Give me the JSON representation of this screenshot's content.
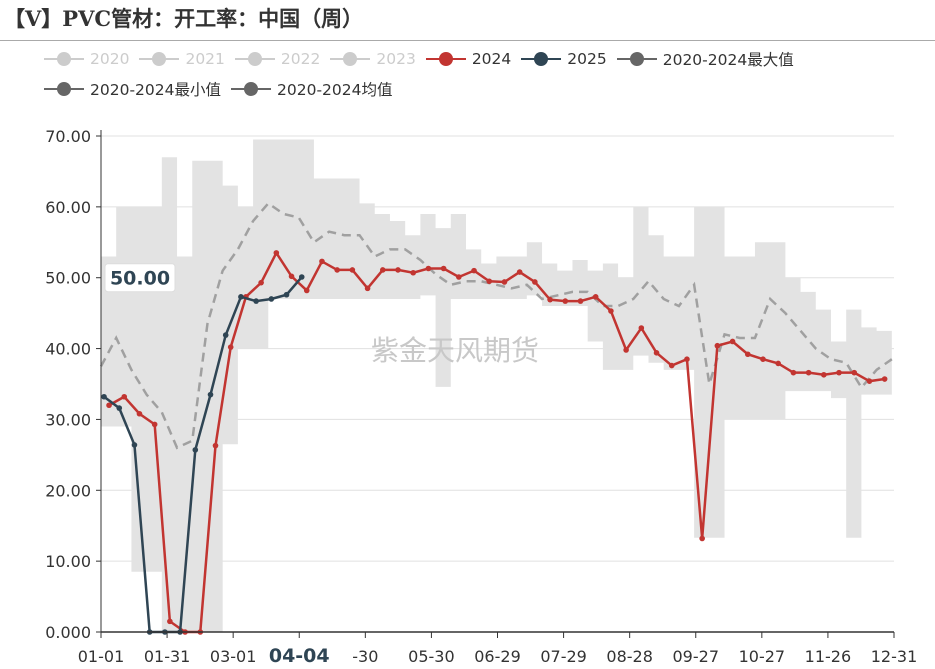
{
  "title": "【V】PVC管材：开工率：中国（周）",
  "legend": [
    {
      "label": "2020",
      "color": "#cccccc",
      "active": false
    },
    {
      "label": "2021",
      "color": "#cccccc",
      "active": false
    },
    {
      "label": "2022",
      "color": "#cccccc",
      "active": false
    },
    {
      "label": "2023",
      "color": "#cccccc",
      "active": false
    },
    {
      "label": "2024",
      "color": "#c23531",
      "active": true
    },
    {
      "label": "2025",
      "color": "#2f4554",
      "active": true
    },
    {
      "label": "2020-2024最大值",
      "color": "#666666",
      "active": true
    },
    {
      "label": "2020-2024最小值",
      "color": "#666666",
      "active": true
    },
    {
      "label": "2020-2024均值",
      "color": "#666666",
      "active": true
    }
  ],
  "watermark": "紫金天风期货",
  "chart_data": {
    "type": "line",
    "title": "【V】PVC管材：开工率：中国（周）",
    "ylim": [
      0,
      70
    ],
    "y_ticks": [
      "0.000",
      "10.00",
      "20.00",
      "30.00",
      "40.00",
      "50.00",
      "60.00",
      "70.00"
    ],
    "x_ticks": [
      "01-01",
      "01-31",
      "03-01",
      "04-04",
      "-30",
      "05-30",
      "06-29",
      "07-29",
      "08-28",
      "09-27",
      "10-27",
      "11-26",
      "12-31"
    ],
    "axis_pointer": {
      "x_label": "04-04",
      "y_label": "50.00"
    },
    "band_step_days": 7,
    "series": [
      {
        "name": "2024",
        "color": "#c23531",
        "start_day": 3.7,
        "step_days": 7,
        "values": [
          32,
          33.2,
          30.8,
          29.3,
          1.5,
          0,
          0,
          26.3,
          40.2,
          47.3,
          49.3,
          53.5,
          50.2,
          48.2,
          52.3,
          51.1,
          51.1,
          48.5,
          51.1,
          51.1,
          50.7,
          51.3,
          51.3,
          50.1,
          51.0,
          49.5,
          49.4,
          50.8,
          49.4,
          46.9,
          46.7,
          46.7,
          47.3,
          45.3,
          39.8,
          42.9,
          39.4,
          37.6,
          38.5,
          13.2,
          40.4,
          41.0,
          39.2,
          38.5,
          37.9,
          36.6,
          36.6,
          36.3,
          36.6,
          36.6,
          35.4,
          35.7
        ]
      },
      {
        "name": "2025",
        "color": "#2f4554",
        "start_day": 1.4,
        "step_days": 7,
        "values": [
          33.2,
          31.6,
          26.4,
          0,
          0,
          0,
          25.7,
          33.5,
          41.9,
          47.3,
          46.7,
          47.0,
          47.6,
          50.1
        ]
      },
      {
        "name": "2020-2024最大值",
        "values": [
          53,
          60,
          60,
          60,
          67,
          53,
          66.5,
          66.5,
          63,
          60,
          69.5,
          69.5,
          69.5,
          69.5,
          64,
          64,
          64,
          60.5,
          59,
          58,
          56,
          59,
          57,
          59,
          54,
          52,
          53,
          53,
          55,
          52,
          51,
          52.5,
          51,
          52,
          50,
          60,
          56,
          53,
          53,
          60,
          60,
          53,
          53,
          55,
          55,
          50,
          48,
          45.5,
          41,
          45.5,
          43,
          42.5,
          47
        ]
      },
      {
        "name": "2020-2024最小值",
        "values": [
          29,
          29,
          8.5,
          8.5,
          0,
          0,
          0,
          0,
          26.5,
          40,
          40,
          47,
          47,
          47,
          47,
          47,
          47,
          47,
          47,
          47,
          47,
          47.5,
          34.6,
          47,
          47,
          47,
          47,
          47,
          47.5,
          46,
          46,
          46,
          41,
          37,
          37,
          39,
          38,
          37,
          37,
          13.3,
          13.3,
          30,
          30,
          30,
          30,
          34,
          34,
          34,
          33,
          13.3,
          33.5,
          33.5,
          32
        ]
      },
      {
        "name": "2020-2024均值",
        "values": [
          37.5,
          41.5,
          37,
          33.5,
          31,
          26,
          27,
          43.5,
          51,
          54,
          58,
          60.5,
          59,
          58.5,
          55,
          56.5,
          56,
          56,
          53,
          54,
          54,
          52.5,
          50.5,
          49,
          49.5,
          49.5,
          49,
          48.5,
          49,
          47,
          47.5,
          48,
          48,
          46,
          46,
          47,
          49.5,
          47,
          46,
          49,
          35,
          42,
          41.5,
          41.5,
          47,
          45,
          42.5,
          40,
          38.5,
          38,
          34.5,
          37,
          38.5
        ]
      }
    ]
  }
}
